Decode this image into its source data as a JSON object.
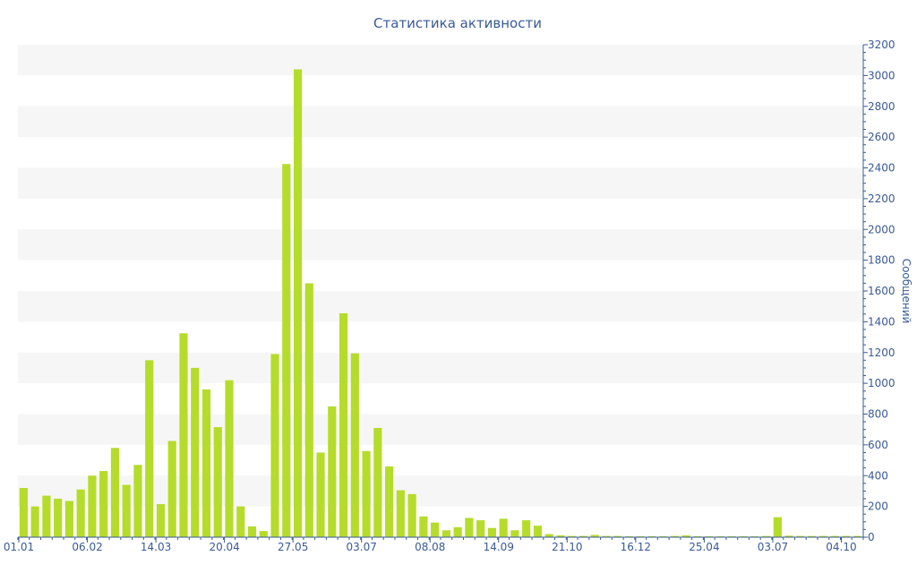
{
  "chart_data": {
    "type": "bar",
    "title": "Статистика активности",
    "xlabel": "",
    "ylabel": "Сообщений",
    "y_axis_side": "right",
    "ylim": [
      0,
      3200
    ],
    "y_ticks": [
      0,
      200,
      400,
      600,
      800,
      1000,
      1200,
      1400,
      1600,
      1800,
      2000,
      2200,
      2400,
      2600,
      2800,
      3000,
      3200
    ],
    "grid": "alternating-bands",
    "x_tick_labels": [
      {
        "label": "01.01",
        "index": 0
      },
      {
        "label": "06.02",
        "index": 6
      },
      {
        "label": "14.03",
        "index": 12
      },
      {
        "label": "20.04",
        "index": 18
      },
      {
        "label": "27.05",
        "index": 24
      },
      {
        "label": "03.07",
        "index": 30
      },
      {
        "label": "08.08",
        "index": 36
      },
      {
        "label": "14.09",
        "index": 42
      },
      {
        "label": "21.10",
        "index": 48
      },
      {
        "label": "16.12",
        "index": 54
      },
      {
        "label": "25.04",
        "index": 60
      },
      {
        "label": "03.07",
        "index": 66
      },
      {
        "label": "04.10",
        "index": 72
      }
    ],
    "values": [
      320,
      200,
      270,
      250,
      235,
      310,
      400,
      430,
      580,
      340,
      470,
      1150,
      215,
      625,
      1325,
      1100,
      960,
      715,
      1020,
      200,
      70,
      40,
      1190,
      2425,
      3040,
      1650,
      550,
      850,
      1455,
      1195,
      560,
      710,
      460,
      305,
      280,
      135,
      95,
      45,
      65,
      125,
      110,
      60,
      120,
      45,
      110,
      75,
      20,
      12,
      8,
      8,
      15,
      8,
      8,
      6,
      6,
      6,
      6,
      8,
      12,
      6,
      6,
      6,
      6,
      6,
      6,
      8,
      130,
      10,
      8,
      8,
      8,
      8,
      8,
      8
    ],
    "colors": {
      "bar": "#b5dc2b",
      "text": "#3a5a96",
      "band": "#f6f6f6",
      "axis": "#3a5a96"
    }
  }
}
